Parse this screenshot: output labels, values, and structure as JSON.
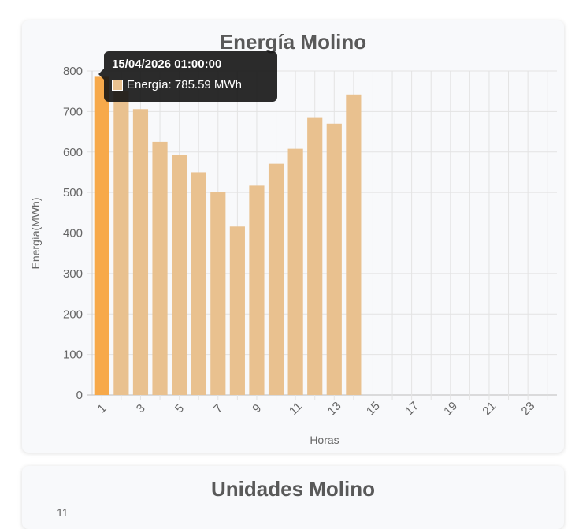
{
  "card1": {
    "title": "Energía Molino"
  },
  "card2": {
    "title": "Unidades Molino",
    "first_tick": "11"
  },
  "tooltip": {
    "title": "15/04/2026 01:00:00",
    "label": "Energía",
    "value": "785.59 MWh"
  },
  "chart_data": {
    "type": "bar",
    "title": "Energía Molino",
    "xlabel": "Horas",
    "ylabel": "Energía(MWh)",
    "ylim": [
      0,
      800
    ],
    "yticks": [
      0,
      100,
      200,
      300,
      400,
      500,
      600,
      700,
      800
    ],
    "categories": [
      "1",
      "2",
      "3",
      "4",
      "5",
      "6",
      "7",
      "8",
      "9",
      "10",
      "11",
      "12",
      "13",
      "14",
      "15",
      "16",
      "17",
      "18",
      "19",
      "20",
      "21",
      "22",
      "23",
      "24"
    ],
    "x_tick_labels": [
      "1",
      "3",
      "5",
      "7",
      "9",
      "11",
      "13",
      "15",
      "17",
      "19",
      "21",
      "23"
    ],
    "grid": true,
    "highlight_index": 0,
    "series": [
      {
        "name": "Energía",
        "color": "#e9c18f",
        "highlight_color": "#f7a94a",
        "values": [
          785.59,
          750,
          706,
          625,
          593,
          550,
          502,
          416,
          517,
          571,
          608,
          684,
          670,
          742,
          null,
          null,
          null,
          null,
          null,
          null,
          null,
          null,
          null,
          null
        ]
      }
    ]
  }
}
